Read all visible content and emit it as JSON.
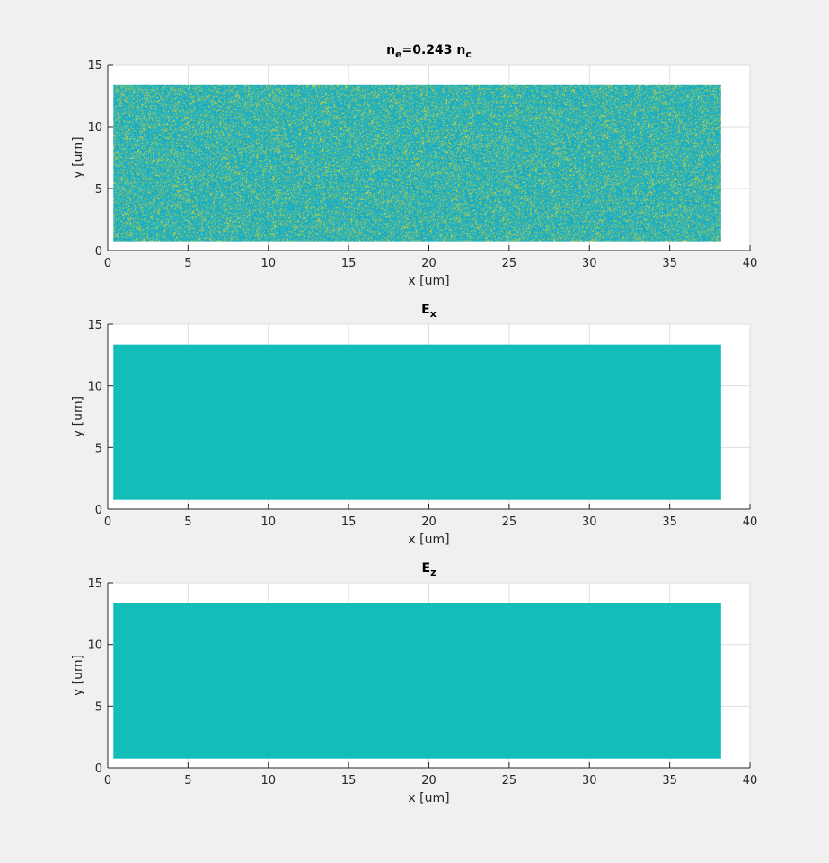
{
  "chart_data": [
    {
      "type": "heatmap",
      "title_parts": {
        "base1": "n",
        "sub1": "e",
        "mid": "=0.243 n",
        "sub2": "c"
      },
      "xlabel": "x [um]",
      "ylabel": "y [um]",
      "xlim": [
        0,
        40
      ],
      "ylim": [
        0,
        15
      ],
      "xticks": [
        0,
        5,
        10,
        15,
        20,
        25,
        30,
        35,
        40
      ],
      "yticks": [
        0,
        5,
        10,
        15
      ],
      "grid": true,
      "data_extent": {
        "x": [
          0.35,
          38.2
        ],
        "y": [
          0.75,
          13.35
        ]
      },
      "pattern": "noise",
      "colors": [
        "#1fb0c8",
        "#16a6c4",
        "#29b4ba",
        "#3fb8a4",
        "#7cc36f",
        "#b9cc4b",
        "#e0d33a"
      ]
    },
    {
      "type": "heatmap",
      "title_parts": {
        "base1": "E",
        "sub1": "x",
        "mid": "",
        "sub2": ""
      },
      "xlabel": "x [um]",
      "ylabel": "y [um]",
      "xlim": [
        0,
        40
      ],
      "ylim": [
        0,
        15
      ],
      "xticks": [
        0,
        5,
        10,
        15,
        20,
        25,
        30,
        35,
        40
      ],
      "yticks": [
        0,
        5,
        10,
        15
      ],
      "grid": true,
      "data_extent": {
        "x": [
          0.35,
          38.2
        ],
        "y": [
          0.75,
          13.35
        ]
      },
      "pattern": "uniform",
      "colors": [
        "#13bdb8"
      ]
    },
    {
      "type": "heatmap",
      "title_parts": {
        "base1": "E",
        "sub1": "z",
        "mid": "",
        "sub2": ""
      },
      "xlabel": "x [um]",
      "ylabel": "y [um]",
      "xlim": [
        0,
        40
      ],
      "ylim": [
        0,
        15
      ],
      "xticks": [
        0,
        5,
        10,
        15,
        20,
        25,
        30,
        35,
        40
      ],
      "yticks": [
        0,
        5,
        10,
        15
      ],
      "grid": true,
      "data_extent": {
        "x": [
          0.35,
          38.2
        ],
        "y": [
          0.75,
          13.35
        ]
      },
      "pattern": "uniform",
      "colors": [
        "#13bdb8"
      ]
    }
  ]
}
